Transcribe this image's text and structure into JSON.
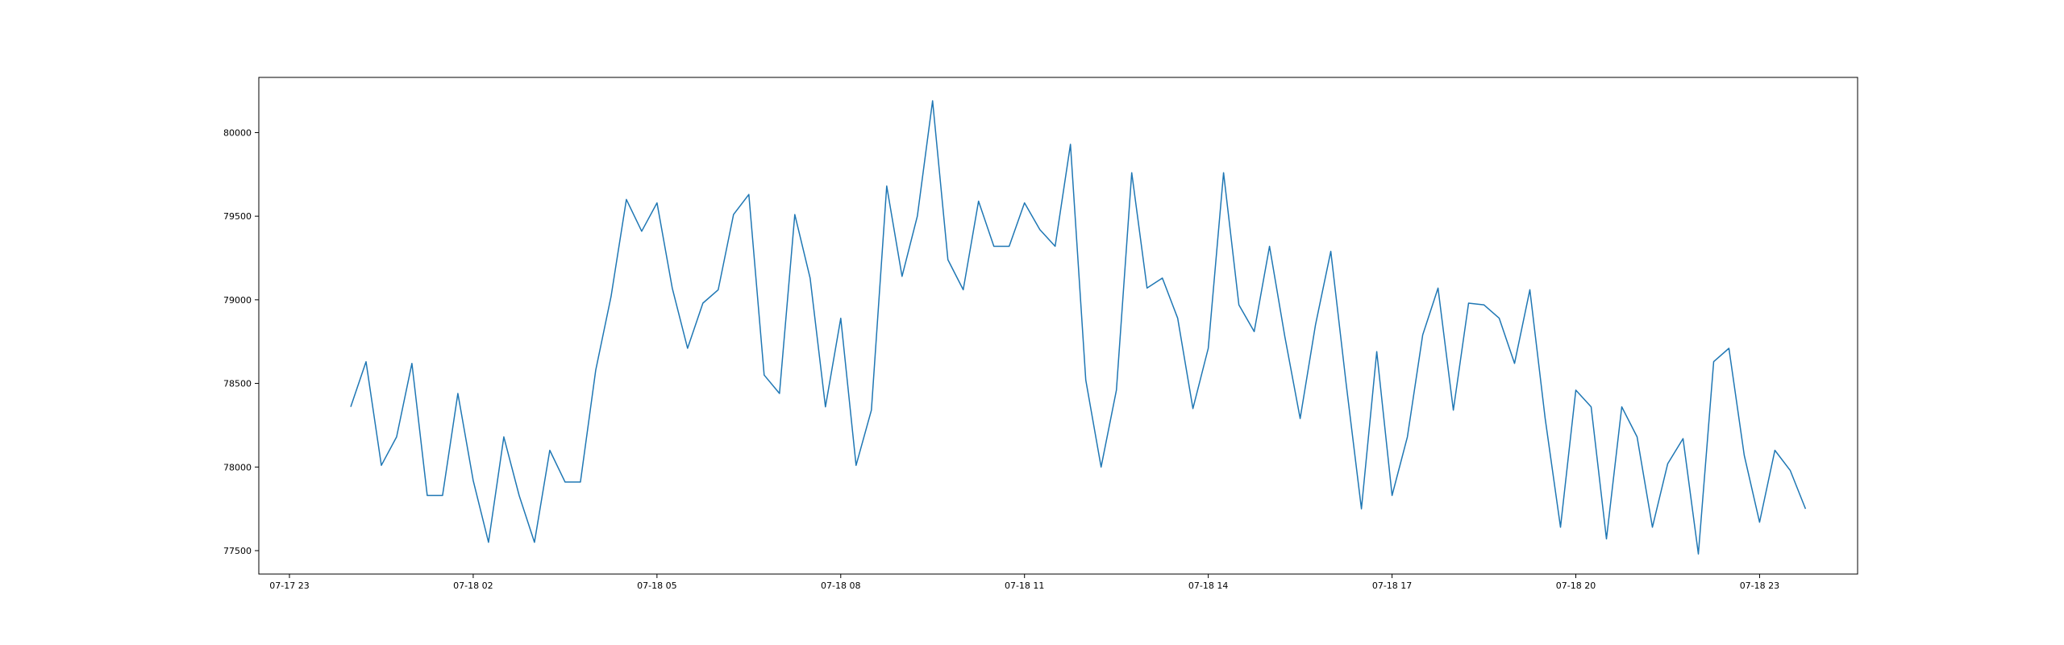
{
  "chart_data": {
    "type": "line",
    "title": "",
    "xlabel": "",
    "ylabel": "",
    "x_tick_labels": [
      "07-17 23",
      "07-18 02",
      "07-18 05",
      "07-18 08",
      "07-18 11",
      "07-18 14",
      "07-18 17",
      "07-18 20",
      "07-18 23"
    ],
    "x_ticks_hours": [
      -1,
      2,
      5,
      8,
      11,
      14,
      17,
      20,
      23
    ],
    "x_range_hours": [
      -1.5,
      24.6
    ],
    "y_ticks": [
      77500,
      78000,
      78500,
      79000,
      79500,
      80000
    ],
    "ylim": [
      77360,
      80330
    ],
    "grid": false,
    "line_color": "#1f77b4",
    "series": [
      {
        "x_start": "07-18 00:00",
        "x_step_minutes": 15,
        "values": [
          78360,
          78630,
          78010,
          78180,
          78620,
          77830,
          77830,
          78440,
          77920,
          77550,
          78180,
          77830,
          77550,
          78100,
          77910,
          77910,
          78580,
          79020,
          79600,
          79410,
          79580,
          79070,
          78710,
          78980,
          79060,
          79510,
          79630,
          78550,
          78440,
          79510,
          79130,
          78360,
          78890,
          78010,
          78340,
          79680,
          79140,
          79500,
          80190,
          79240,
          79060,
          79590,
          79320,
          79320,
          79580,
          79420,
          79320,
          79930,
          78520,
          78000,
          78460,
          79760,
          79070,
          79130,
          78890,
          78350,
          78710,
          79760,
          78970,
          78810,
          79320,
          78780,
          78290,
          78850,
          79290,
          78500,
          77750,
          78690,
          77830,
          78180,
          78790,
          79070,
          78340,
          78980,
          78970,
          78890,
          78620,
          79060,
          78290,
          77640,
          78460,
          78360,
          77570,
          78360,
          78180,
          77640,
          78020,
          78170,
          77480,
          78630,
          78710,
          78070,
          77670,
          78100,
          77980,
          77750
        ]
      }
    ]
  }
}
